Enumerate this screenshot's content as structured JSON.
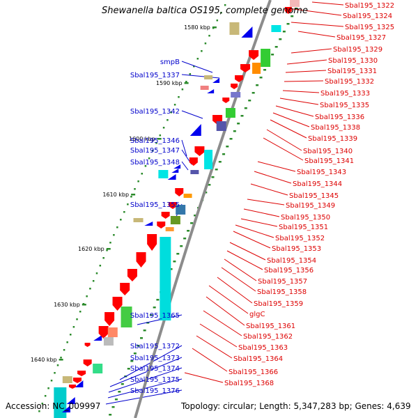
{
  "title": "Shewanella baltica OS195, complete genome",
  "footer": {
    "accession": "Accession: NC_009997",
    "info": "Topology: circular; Length: 5,347,283 bp; Genes: 4,639"
  },
  "colors": {
    "backbone": "#8c8c8c",
    "left_labels": "#0000cc",
    "right_labels": "#dd0000",
    "tick_marks": "#2a8a2a",
    "reverse_strand_genes": "#0000ee",
    "forward_strand_genes": "#ff0000"
  },
  "kbp_ticks": [
    "1580 kbp",
    "1590 kbp",
    "1600 kbp",
    "1610 kbp",
    "1620 kbp",
    "1630 kbp",
    "1640 kbp"
  ],
  "left_labels": [
    "smpB",
    "Sbal195_1337",
    "Sbal195_1342",
    "Sbal195_1346",
    "Sbal195_1347",
    "Sbal195_1348",
    "Sbal195_1355",
    "Sbal195_1365",
    "Sbal195_1372",
    "Sbal195_1373",
    "Sbal195_1374",
    "Sbal195_1375",
    "Sbal195_1376"
  ],
  "right_labels": [
    "Sbal195_1322",
    "Sbal195_1324",
    "Sbal195_1325",
    "Sbal195_1327",
    "Sbal195_1329",
    "Sbal195_1330",
    "Sbal195_1331",
    "Sbal195_1332",
    "Sbal195_1333",
    "Sbal195_1335",
    "Sbal195_1336",
    "Sbal195_1338",
    "Sbal195_1339",
    "Sbal195_1340",
    "Sbal195_1341",
    "Sbal195_1343",
    "Sbal195_1344",
    "Sbal195_1345",
    "Sbal195_1349",
    "Sbal195_1350",
    "Sbal195_1351",
    "Sbal195_1352",
    "Sbal195_1353",
    "Sbal195_1354",
    "Sbal195_1356",
    "Sbal195_1357",
    "Sbal195_1358",
    "Sbal195_1359",
    "glgC",
    "Sbal195_1361",
    "Sbal195_1362",
    "Sbal195_1363",
    "Sbal195_1364",
    "Sbal195_1366",
    "Sbal195_1368"
  ]
}
